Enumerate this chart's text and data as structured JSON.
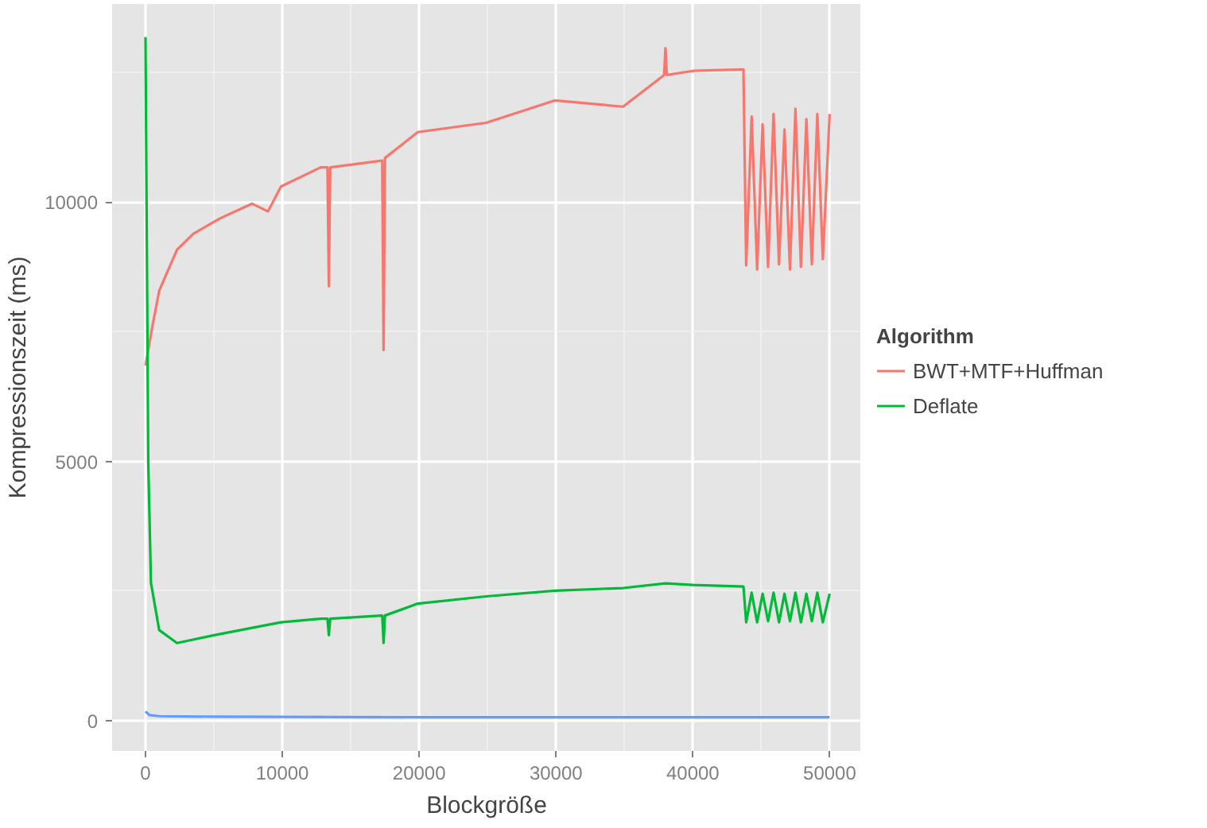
{
  "chart_data": {
    "type": "line",
    "xlabel": "Blockgröße",
    "ylabel": "Kompressionszeit (ms)",
    "legend_title": "Algorithm",
    "xlim": [
      -2440,
      52300
    ],
    "ylim": [
      -580,
      13820
    ],
    "xticks": [
      0,
      10000,
      20000,
      30000,
      40000,
      50000
    ],
    "yticks": [
      0,
      5000,
      10000
    ],
    "grid": true,
    "legend": "right",
    "line_style": "solid",
    "marker": "none",
    "series": [
      {
        "name": "BWT+MTF+Huffman",
        "color": "#f8766d",
        "x": [
          0,
          500,
          1000,
          2300,
          3500,
          5470,
          7800,
          8950,
          9900,
          12800,
          13300,
          13400,
          13500,
          17300,
          17400,
          17500,
          19900,
          24900,
          29900,
          34900,
          37900,
          38000,
          38100,
          40000,
          43700,
          43900,
          44300,
          44700,
          45100,
          45500,
          45900,
          46300,
          46700,
          47100,
          47500,
          47900,
          48300,
          48700,
          49100,
          49500,
          50000
        ],
        "values": [
          6850,
          7600,
          8290,
          9080,
          9390,
          9690,
          9970,
          9820,
          10300,
          10670,
          10670,
          8380,
          10670,
          10800,
          7150,
          10850,
          11350,
          11530,
          11960,
          11840,
          12450,
          12970,
          12450,
          12530,
          12560,
          8780,
          11650,
          8700,
          11500,
          8750,
          11700,
          8800,
          11400,
          8700,
          11800,
          8750,
          11600,
          8800,
          11700,
          8900,
          11700
        ]
      },
      {
        "name": "Deflate",
        "color": "#00ba38",
        "x": [
          0,
          200,
          400,
          1000,
          2300,
          5000,
          9900,
          12800,
          13300,
          13400,
          13500,
          17300,
          17400,
          17500,
          19900,
          24900,
          29900,
          34900,
          38000,
          40000,
          43700,
          43900,
          44300,
          44700,
          45100,
          45500,
          45900,
          46300,
          46700,
          47100,
          47500,
          47900,
          48300,
          48700,
          49100,
          49500,
          50000
        ],
        "values": [
          13180,
          5000,
          2660,
          1750,
          1500,
          1650,
          1900,
          1970,
          1970,
          1650,
          1970,
          2030,
          1500,
          2030,
          2260,
          2400,
          2510,
          2560,
          2650,
          2620,
          2590,
          1900,
          2470,
          1900,
          2450,
          1920,
          2470,
          1900,
          2450,
          1920,
          2470,
          1900,
          2450,
          1920,
          2470,
          1900,
          2450
        ]
      },
      {
        "color": "#619cff",
        "x": [
          0,
          300,
          1000,
          5000,
          20000,
          40000,
          50000
        ],
        "values": [
          180,
          110,
          90,
          80,
          70,
          70,
          70
        ]
      }
    ]
  }
}
